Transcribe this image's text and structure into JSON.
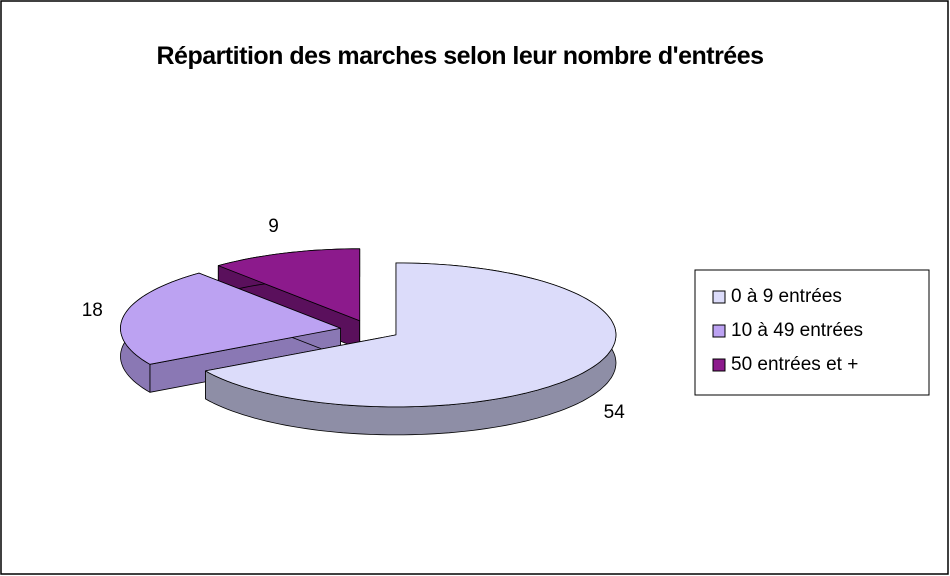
{
  "chart_data": {
    "type": "pie",
    "three_d": true,
    "title": "Répartition des marches selon leur nombre d'entrées",
    "categories": [
      "0 à 9 entrées",
      "10 à 49 entrées",
      "50 entrées et +"
    ],
    "values": [
      54,
      18,
      9
    ],
    "colors": [
      "#dcdcfa",
      "#bca2f2",
      "#8c1a8c"
    ],
    "side_colors": [
      "#8e8ea6",
      "#8a78b4",
      "#5a105c"
    ],
    "legend": "right"
  }
}
